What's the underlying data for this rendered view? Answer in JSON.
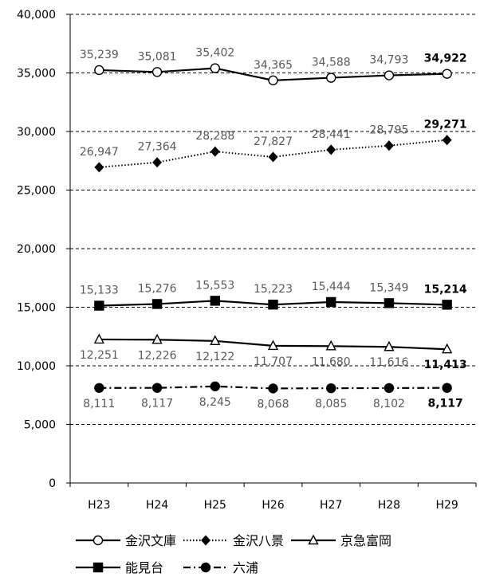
{
  "chart_data": {
    "type": "line",
    "categories": [
      "H23",
      "H24",
      "H25",
      "H26",
      "H27",
      "H28",
      "H29"
    ],
    "ylim": [
      0,
      40000
    ],
    "yticks": [
      0,
      5000,
      10000,
      15000,
      20000,
      25000,
      30000,
      35000,
      40000
    ],
    "ytick_labels": [
      "0",
      "5,000",
      "10,000",
      "15,000",
      "20,000",
      "25,000",
      "30,000",
      "35,000",
      "40,000"
    ],
    "grid": "horizontal-dashed",
    "legend_position": "bottom",
    "series": [
      {
        "name": "金沢文庫",
        "values": [
          35239,
          35081,
          35402,
          34365,
          34588,
          34793,
          34922
        ],
        "labels": [
          "35,239",
          "35,081",
          "35,402",
          "34,365",
          "34,588",
          "34,793",
          "34,922"
        ],
        "marker": "circle-open",
        "line": "solid",
        "color": "#000000"
      },
      {
        "name": "金沢八景",
        "values": [
          26947,
          27364,
          28288,
          27827,
          28441,
          28795,
          29271
        ],
        "labels": [
          "26,947",
          "27,364",
          "28,288",
          "27,827",
          "28,441",
          "28,795",
          "29,271"
        ],
        "marker": "diamond",
        "line": "dotted",
        "color": "#000000"
      },
      {
        "name": "京急富岡",
        "values": [
          12251,
          12226,
          12122,
          11707,
          11680,
          11616,
          11413
        ],
        "labels": [
          "12,251",
          "12,226",
          "12,122",
          "11,707",
          "11,680",
          "11,616",
          "11,413"
        ],
        "marker": "triangle-open",
        "line": "solid",
        "color": "#000000"
      },
      {
        "name": "能見台",
        "values": [
          15133,
          15276,
          15553,
          15223,
          15444,
          15349,
          15214
        ],
        "labels": [
          "15,133",
          "15,276",
          "15,553",
          "15,223",
          "15,444",
          "15,349",
          "15,214"
        ],
        "marker": "square",
        "line": "solid",
        "color": "#000000"
      },
      {
        "name": "六浦",
        "values": [
          8111,
          8117,
          8245,
          8068,
          8085,
          8102,
          8117
        ],
        "labels": [
          "8,111",
          "8,117",
          "8,245",
          "8,068",
          "8,085",
          "8,102",
          "8,117"
        ],
        "marker": "circle",
        "line": "dashdot",
        "color": "#000000"
      }
    ]
  }
}
